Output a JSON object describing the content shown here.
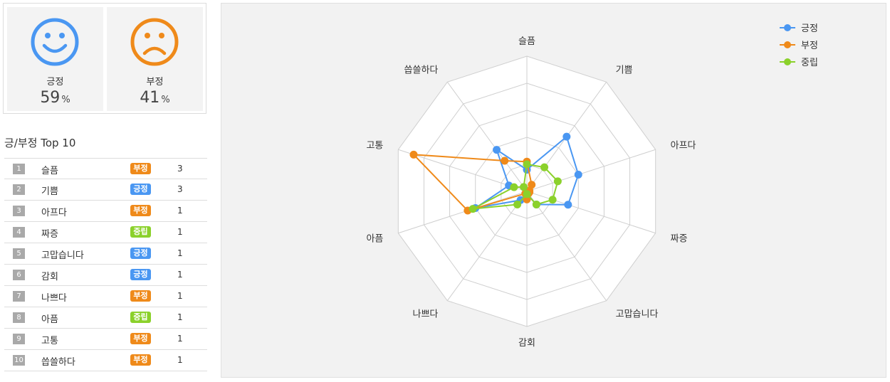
{
  "summary": {
    "positive": {
      "label": "긍정",
      "value": "59",
      "unit": "%",
      "color": "#4a97f2"
    },
    "negative": {
      "label": "부정",
      "value": "41",
      "unit": "%",
      "color": "#ef8a1a"
    }
  },
  "top10": {
    "title": "긍/부정 Top 10",
    "items": [
      {
        "rank": "1",
        "word": "슬픔",
        "badge": "부정",
        "type": "neg",
        "count": "3"
      },
      {
        "rank": "2",
        "word": "기쁨",
        "badge": "긍정",
        "type": "pos",
        "count": "3"
      },
      {
        "rank": "3",
        "word": "아프다",
        "badge": "부정",
        "type": "neg",
        "count": "1"
      },
      {
        "rank": "4",
        "word": "짜증",
        "badge": "중립",
        "type": "neu",
        "count": "1"
      },
      {
        "rank": "5",
        "word": "고맙습니다",
        "badge": "긍정",
        "type": "pos",
        "count": "1"
      },
      {
        "rank": "6",
        "word": "감회",
        "badge": "긍정",
        "type": "pos",
        "count": "1"
      },
      {
        "rank": "7",
        "word": "나쁘다",
        "badge": "부정",
        "type": "neg",
        "count": "1"
      },
      {
        "rank": "8",
        "word": "아픔",
        "badge": "중립",
        "type": "neu",
        "count": "1"
      },
      {
        "rank": "9",
        "word": "고통",
        "badge": "부정",
        "type": "neg",
        "count": "1"
      },
      {
        "rank": "10",
        "word": "씁쓸하다",
        "badge": "부정",
        "type": "neg",
        "count": "1"
      }
    ],
    "badge_colors": {
      "pos": "#4a97f2",
      "neg": "#ef8a1a",
      "neu": "#8bd12b"
    }
  },
  "chart_data": {
    "type": "radar",
    "categories": [
      "슬픔",
      "기쁨",
      "아프다",
      "짜증",
      "고맙습니다",
      "감회",
      "나쁘다",
      "아픔",
      "고통",
      "씁쓸하다"
    ],
    "rmax": 5,
    "rings": 5,
    "grid": true,
    "legend_position": "top-right",
    "series": [
      {
        "name": "긍정",
        "color": "#4a97f2",
        "values": [
          0.8,
          2.5,
          2.0,
          1.6,
          0.6,
          0.1,
          0.4,
          2.0,
          0.7,
          1.9
        ]
      },
      {
        "name": "부정",
        "color": "#ef8a1a",
        "values": [
          1.1,
          0.3,
          0.1,
          0.1,
          0.1,
          0.3,
          0.1,
          2.3,
          4.4,
          1.4
        ]
      },
      {
        "name": "중립",
        "color": "#8bd12b",
        "values": [
          1.0,
          1.1,
          1.2,
          1.0,
          0.6,
          0.1,
          0.6,
          2.1,
          0.5,
          0.2
        ]
      }
    ]
  }
}
